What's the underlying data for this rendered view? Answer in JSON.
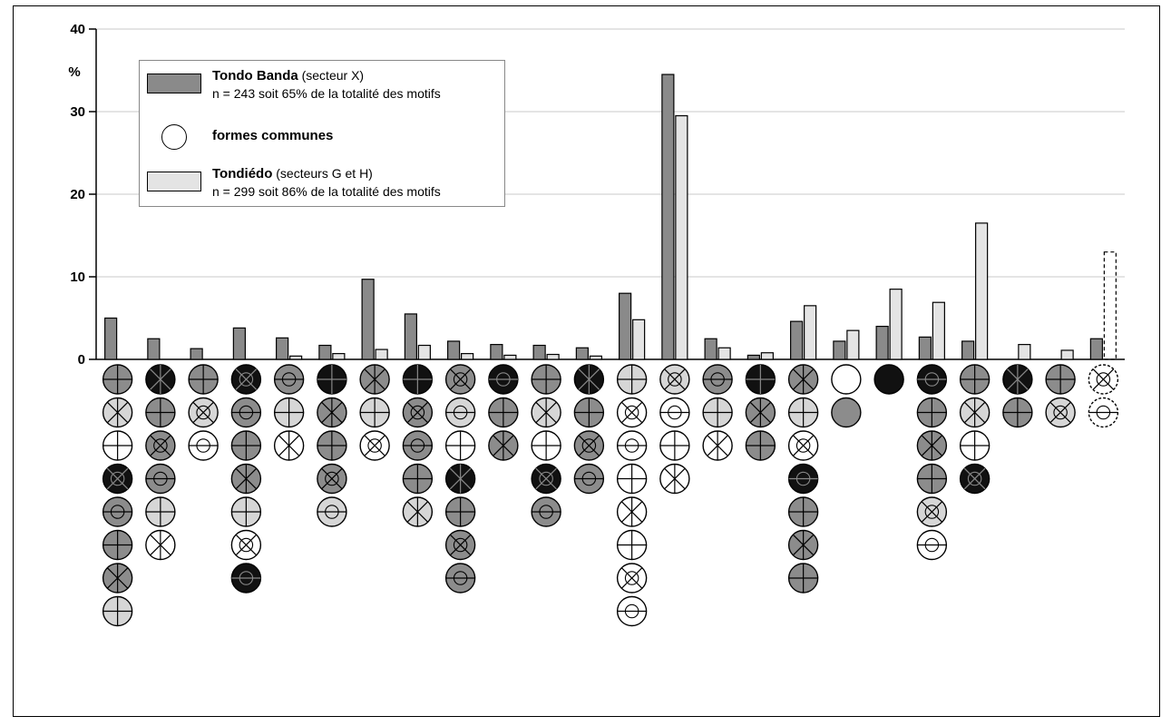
{
  "chart_data": {
    "type": "bar",
    "ylabel": "%",
    "ylim": [
      0,
      40
    ],
    "yticks": [
      "0",
      "10",
      "20",
      "30",
      "40"
    ],
    "grid": true,
    "legend_position": "top-left",
    "series": [
      {
        "name": "Tondo Banda (secteur X)",
        "color": "#8a8a8a",
        "values": [
          5,
          2.5,
          1.3,
          3.8,
          2.6,
          1.7,
          9.7,
          5.5,
          2.2,
          1.8,
          1.7,
          1.4,
          8,
          34.5,
          2.5,
          0.5,
          4.6,
          2.2,
          4,
          2.7,
          2.2,
          0,
          0,
          2.5
        ]
      },
      {
        "name": "Tondiédo (secteurs G et H)",
        "color": "#e4e4e4",
        "values": [
          0,
          0,
          0,
          0,
          0.4,
          0.7,
          1.2,
          1.7,
          0.7,
          0.5,
          0.6,
          0.4,
          4.8,
          29.5,
          1.4,
          0.8,
          6.5,
          3.5,
          8.5,
          6.9,
          16.5,
          1.8,
          1.1,
          13
        ]
      }
    ],
    "legend": {
      "series_a_name": "Tondo Banda",
      "series_a_sub": " (secteur X)",
      "series_a_n": "n = 243 soit 65% de la totalité  des motifs",
      "common_label": "formes communes",
      "series_b_name": "Tondiédo",
      "series_b_sub": " (secteurs G et H)",
      "series_b_n": "n = 299 soit 86% de la totalité  des motifs"
    },
    "motif_columns": [
      8,
      6,
      3,
      7,
      3,
      5,
      3,
      5,
      7,
      3,
      5,
      4,
      8,
      4,
      3,
      3,
      7,
      2,
      1,
      6,
      4,
      2,
      2,
      2
    ]
  },
  "colors": {
    "motif_grey": "#8c8c8c",
    "motif_dark": "#111111",
    "motif_light": "#d6d6d6",
    "grid": "#c8c8c8"
  }
}
